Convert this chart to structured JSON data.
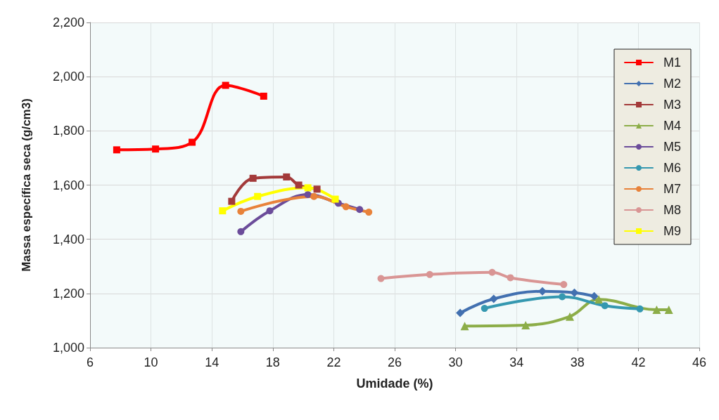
{
  "chart_data": {
    "type": "line",
    "xlabel": "Umidade (%)",
    "ylabel": "Massa específica seca (g/cm3)",
    "xlim": [
      6,
      46
    ],
    "xticks": [
      6,
      10,
      14,
      18,
      22,
      26,
      30,
      34,
      38,
      42,
      46
    ],
    "ylim": [
      1000,
      2200
    ],
    "yticks": [
      {
        "value": 1000,
        "label": "1,000"
      },
      {
        "value": 1200,
        "label": "1,200"
      },
      {
        "value": 1400,
        "label": "1,400"
      },
      {
        "value": 1600,
        "label": "1,600"
      },
      {
        "value": 1800,
        "label": "1,800"
      },
      {
        "value": 2000,
        "label": "2,000"
      },
      {
        "value": 2200,
        "label": "2,200"
      }
    ],
    "grid": true,
    "legend": "top right",
    "line_style": "solid",
    "series": [
      {
        "name": "M1",
        "color": "#ff0000",
        "marker": "square",
        "x": [
          7.75,
          10.3,
          12.7,
          14.9,
          17.4
        ],
        "values": [
          1730,
          1733,
          1758,
          1968,
          1928
        ]
      },
      {
        "name": "M2",
        "color": "#4270b0",
        "marker": "diamond",
        "x": [
          30.3,
          32.5,
          35.7,
          37.8,
          39.1
        ],
        "values": [
          1128,
          1180,
          1208,
          1203,
          1190
        ]
      },
      {
        "name": "M3",
        "color": "#a33a3a",
        "marker": "square",
        "x": [
          15.3,
          16.7,
          18.9,
          19.7,
          20.9
        ],
        "values": [
          1540,
          1625,
          1630,
          1600,
          1585
        ]
      },
      {
        "name": "M4",
        "color": "#8cad48",
        "marker": "triangle",
        "x": [
          30.6,
          34.6,
          37.5,
          39.4,
          43.2,
          44.0
        ],
        "values": [
          1080,
          1083,
          1115,
          1178,
          1140,
          1140
        ]
      },
      {
        "name": "M5",
        "color": "#6b4c9a",
        "marker": "circle",
        "x": [
          15.9,
          17.8,
          20.3,
          22.3,
          23.7
        ],
        "values": [
          1428,
          1505,
          1565,
          1533,
          1510
        ]
      },
      {
        "name": "M6",
        "color": "#3598b0",
        "marker": "circle",
        "x": [
          31.9,
          37.0,
          39.8,
          42.1
        ],
        "values": [
          1145,
          1188,
          1155,
          1143
        ]
      },
      {
        "name": "M7",
        "color": "#e8823a",
        "marker": "circle",
        "x": [
          15.9,
          20.7,
          22.8,
          24.3
        ],
        "values": [
          1503,
          1558,
          1520,
          1500
        ]
      },
      {
        "name": "M8",
        "color": "#d99594",
        "marker": "circle",
        "x": [
          25.1,
          28.3,
          32.4,
          33.6,
          37.1
        ],
        "values": [
          1255,
          1270,
          1278,
          1258,
          1233
        ]
      },
      {
        "name": "M9",
        "color": "#ffff00",
        "marker": "square",
        "x": [
          14.7,
          17.0,
          20.3,
          22.1
        ],
        "values": [
          1505,
          1558,
          1590,
          1548
        ]
      }
    ]
  }
}
